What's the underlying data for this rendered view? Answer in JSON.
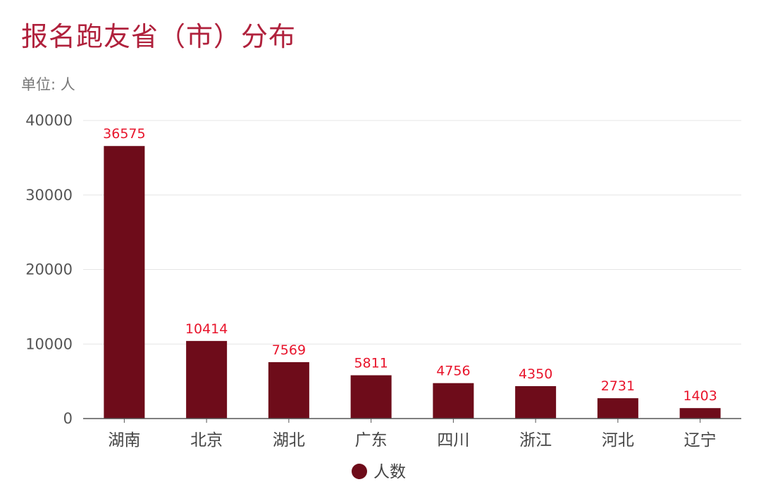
{
  "chart_data": {
    "type": "bar",
    "title": "报名跑友省（市）分布",
    "unit_label": "单位: 人",
    "categories": [
      "湖南",
      "北京",
      "湖北",
      "广东",
      "四川",
      "浙江",
      "河北",
      "辽宁"
    ],
    "series": [
      {
        "name": "人数",
        "values": [
          36575,
          10414,
          7569,
          5811,
          4756,
          4350,
          2731,
          1403
        ]
      }
    ],
    "ylim": [
      0,
      40000
    ],
    "yticks": [
      0,
      10000,
      20000,
      30000,
      40000
    ],
    "grid": true,
    "legend_position": "bottom-center",
    "colors": {
      "bar": "#6e0c1a",
      "data_label": "#e8142b",
      "title": "#b0213c",
      "grid": "#e6e6e6"
    }
  }
}
